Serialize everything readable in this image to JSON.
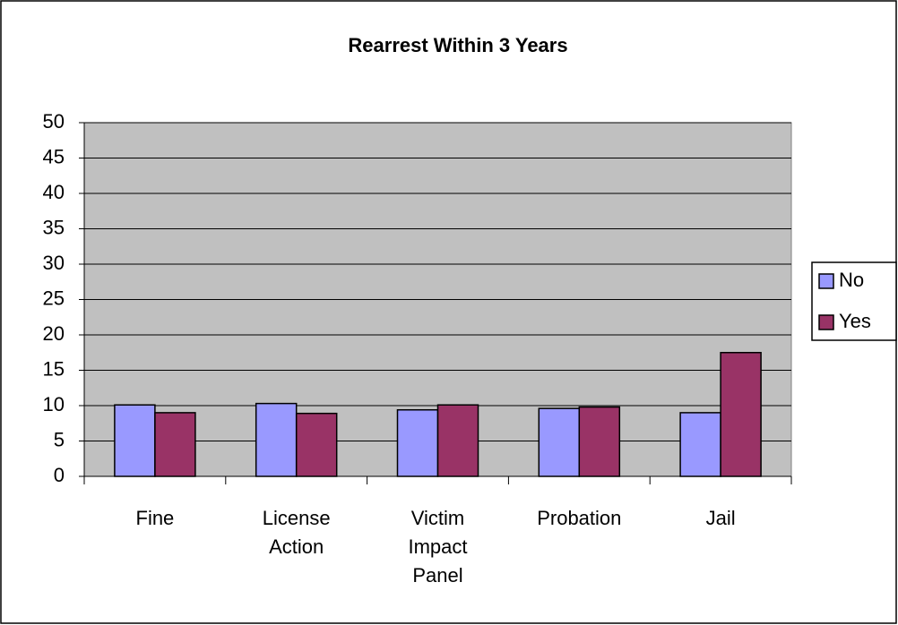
{
  "chart_data": {
    "type": "bar",
    "title": "Rearrest Within 3 Years",
    "categories": [
      "Fine",
      "License Action",
      "Victim Impact Panel",
      "Probation",
      "Jail"
    ],
    "series": [
      {
        "name": "No",
        "color": "#9999ff",
        "values": [
          10.1,
          10.3,
          9.4,
          9.6,
          9.0
        ]
      },
      {
        "name": "Yes",
        "color": "#993366",
        "values": [
          9.0,
          8.9,
          10.1,
          9.8,
          17.5
        ]
      }
    ],
    "ylim": [
      0,
      50
    ],
    "yticks": [
      0,
      5,
      10,
      15,
      20,
      25,
      30,
      35,
      40,
      45,
      50
    ],
    "grid": true,
    "legend": "right",
    "plot_background": "#c0c0c0"
  }
}
